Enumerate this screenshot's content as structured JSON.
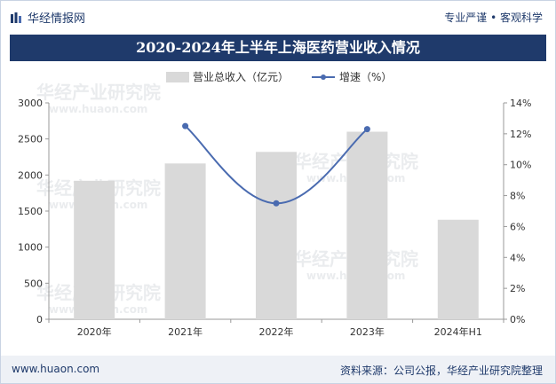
{
  "header": {
    "brand": "华经情报网",
    "tagline": "专业严谨 • 客观科学"
  },
  "title": "2020-2024年上半年上海医药营业收入情况",
  "footer": {
    "url": "www.huaon.com",
    "source": "资料来源：公司公报，华经产业研究院整理"
  },
  "watermark": {
    "text": "华经产业研究院",
    "url": "www.huaon.com"
  },
  "colors": {
    "bar": "#d9d9d9",
    "line": "#4a6bb0",
    "title_band": "#1f3a6b"
  },
  "chart_data": {
    "type": "bar",
    "categories": [
      "2020年",
      "2021年",
      "2022年",
      "2023年",
      "2024年H1"
    ],
    "series": [
      {
        "name": "营业总收入（亿元）",
        "type": "bar",
        "axis": "left",
        "values": [
          1920,
          2160,
          2320,
          2600,
          1380
        ]
      },
      {
        "name": "增速（%）",
        "type": "line",
        "axis": "right",
        "values": [
          null,
          12.5,
          7.5,
          12.3,
          null
        ]
      }
    ],
    "y_left": {
      "min": 0,
      "max": 3000,
      "ticks": [
        "0",
        "500",
        "1000",
        "1500",
        "2000",
        "2500",
        "3000"
      ]
    },
    "y_right": {
      "min": 0,
      "max": 14,
      "ticks": [
        "0%",
        "2%",
        "4%",
        "6%",
        "8%",
        "10%",
        "12%",
        "14%"
      ]
    },
    "legend_position": "top-center",
    "grid": false
  }
}
